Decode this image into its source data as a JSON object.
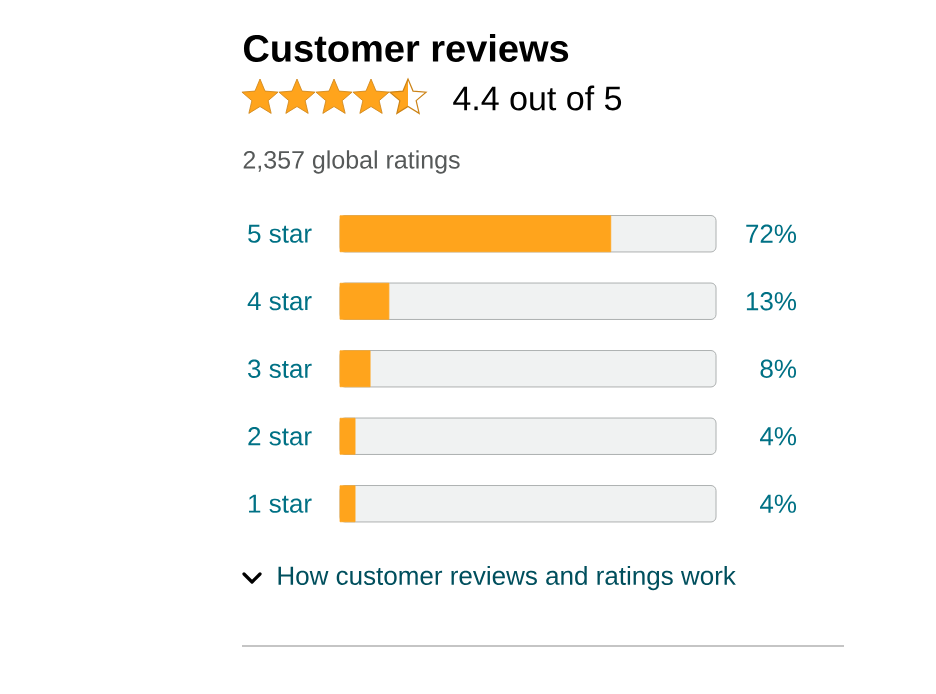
{
  "chart_data": {
    "type": "bar",
    "orientation": "horizontal",
    "title": "Customer reviews",
    "subtitle": "4.4 out of 5",
    "annotations": [
      "2,357 global ratings",
      "How customer reviews and ratings work"
    ],
    "categories": [
      "5 star",
      "4 star",
      "3 star",
      "2 star",
      "1 star"
    ],
    "values": [
      72,
      13,
      8,
      4,
      4
    ],
    "value_labels": [
      "72%",
      "13%",
      "8%",
      "4%",
      "4%"
    ],
    "color": "#ffa41c",
    "xlim": [
      0,
      100
    ],
    "tick_labels": "y"
  }
}
